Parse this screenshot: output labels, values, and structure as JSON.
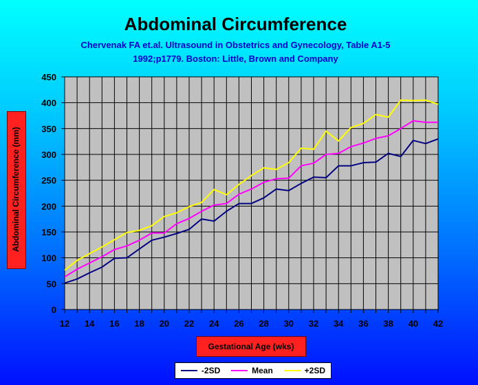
{
  "chart_data": {
    "type": "line",
    "title": "Abdominal Circumference",
    "subtitle_line1": "Chervenak FA et.al. Ultrasound in Obstetrics and Gynecology, Table A1-5",
    "subtitle_line2": "1992;p1779. Boston: Little, Brown and Company",
    "xlabel": "Gestational Age (wks)",
    "ylabel": "Abdominal Circumference (mm)",
    "x": [
      12,
      13,
      14,
      15,
      16,
      17,
      18,
      19,
      20,
      21,
      22,
      23,
      24,
      25,
      26,
      27,
      28,
      29,
      30,
      31,
      32,
      33,
      34,
      35,
      36,
      37,
      38,
      39,
      40,
      41,
      42
    ],
    "x_tick_labels": [
      "12",
      "14",
      "16",
      "18",
      "20",
      "22",
      "24",
      "26",
      "28",
      "30",
      "32",
      "34",
      "36",
      "38",
      "40",
      "42"
    ],
    "y_tick_labels": [
      "0",
      "50",
      "100",
      "150",
      "200",
      "250",
      "300",
      "350",
      "400",
      "450"
    ],
    "ylim": [
      0,
      450
    ],
    "xlim": [
      12,
      42
    ],
    "grid": true,
    "legend_position": "bottom",
    "plot_background": "#c0c0c0",
    "series": [
      {
        "name": "-2SD",
        "color": "#000080",
        "values": [
          51,
          59,
          71,
          82,
          99,
          100,
          117,
          134,
          140,
          147,
          155,
          175,
          171,
          190,
          205,
          205,
          216,
          233,
          230,
          244,
          256,
          255,
          278,
          278,
          284,
          285,
          302,
          296,
          327,
          321,
          330
        ]
      },
      {
        "name": "Mean",
        "color": "#ff00ff",
        "values": [
          63,
          78,
          90,
          102,
          116,
          123,
          134,
          148,
          148,
          166,
          176,
          190,
          202,
          205,
          223,
          233,
          246,
          253,
          254,
          278,
          283,
          300,
          302,
          315,
          322,
          331,
          336,
          350,
          365,
          362,
          362
        ]
      },
      {
        "name": "+2SD",
        "color": "#ffff00",
        "values": [
          76,
          95,
          108,
          121,
          135,
          149,
          153,
          162,
          180,
          187,
          199,
          207,
          232,
          222,
          242,
          259,
          274,
          271,
          284,
          312,
          310,
          345,
          326,
          352,
          360,
          377,
          372,
          405,
          404,
          405,
          397
        ]
      }
    ]
  }
}
